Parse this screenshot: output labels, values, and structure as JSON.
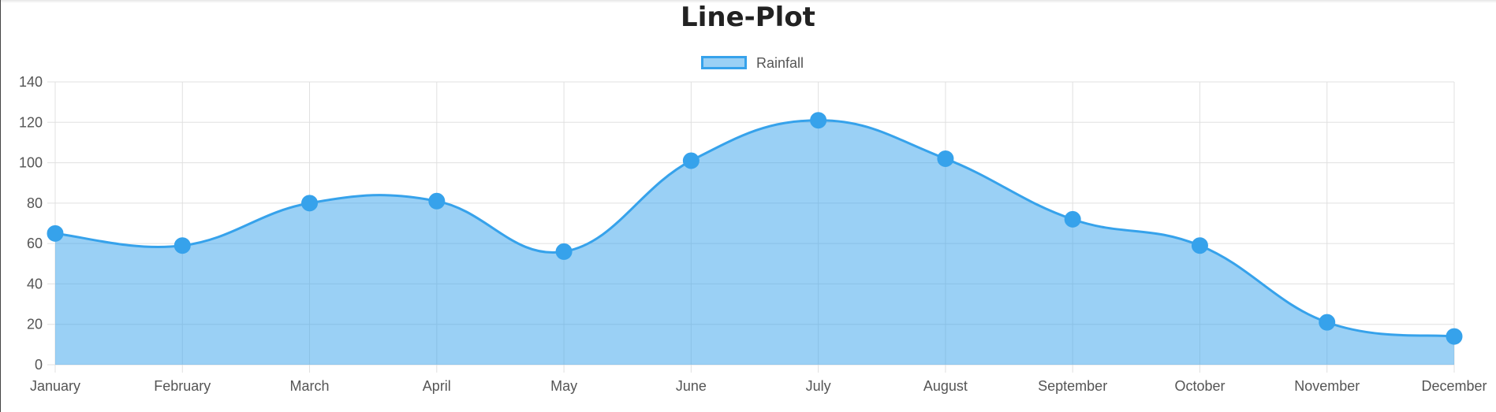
{
  "chart_data": {
    "type": "area",
    "title": "Line-Plot",
    "categories": [
      "January",
      "February",
      "March",
      "April",
      "May",
      "June",
      "July",
      "August",
      "September",
      "October",
      "November",
      "December"
    ],
    "series": [
      {
        "name": "Rainfall",
        "values": [
          65,
          59,
          80,
          81,
          56,
          101,
          121,
          102,
          72,
          59,
          21,
          14
        ]
      }
    ],
    "ylim": [
      0,
      140
    ],
    "yticks": [
      "0",
      "20",
      "40",
      "60",
      "80",
      "100",
      "120",
      "140"
    ],
    "grid": true,
    "legend_position": "top",
    "colors": {
      "line": "#36a2eb",
      "fill": "rgba(54,162,235,0.5)"
    }
  }
}
